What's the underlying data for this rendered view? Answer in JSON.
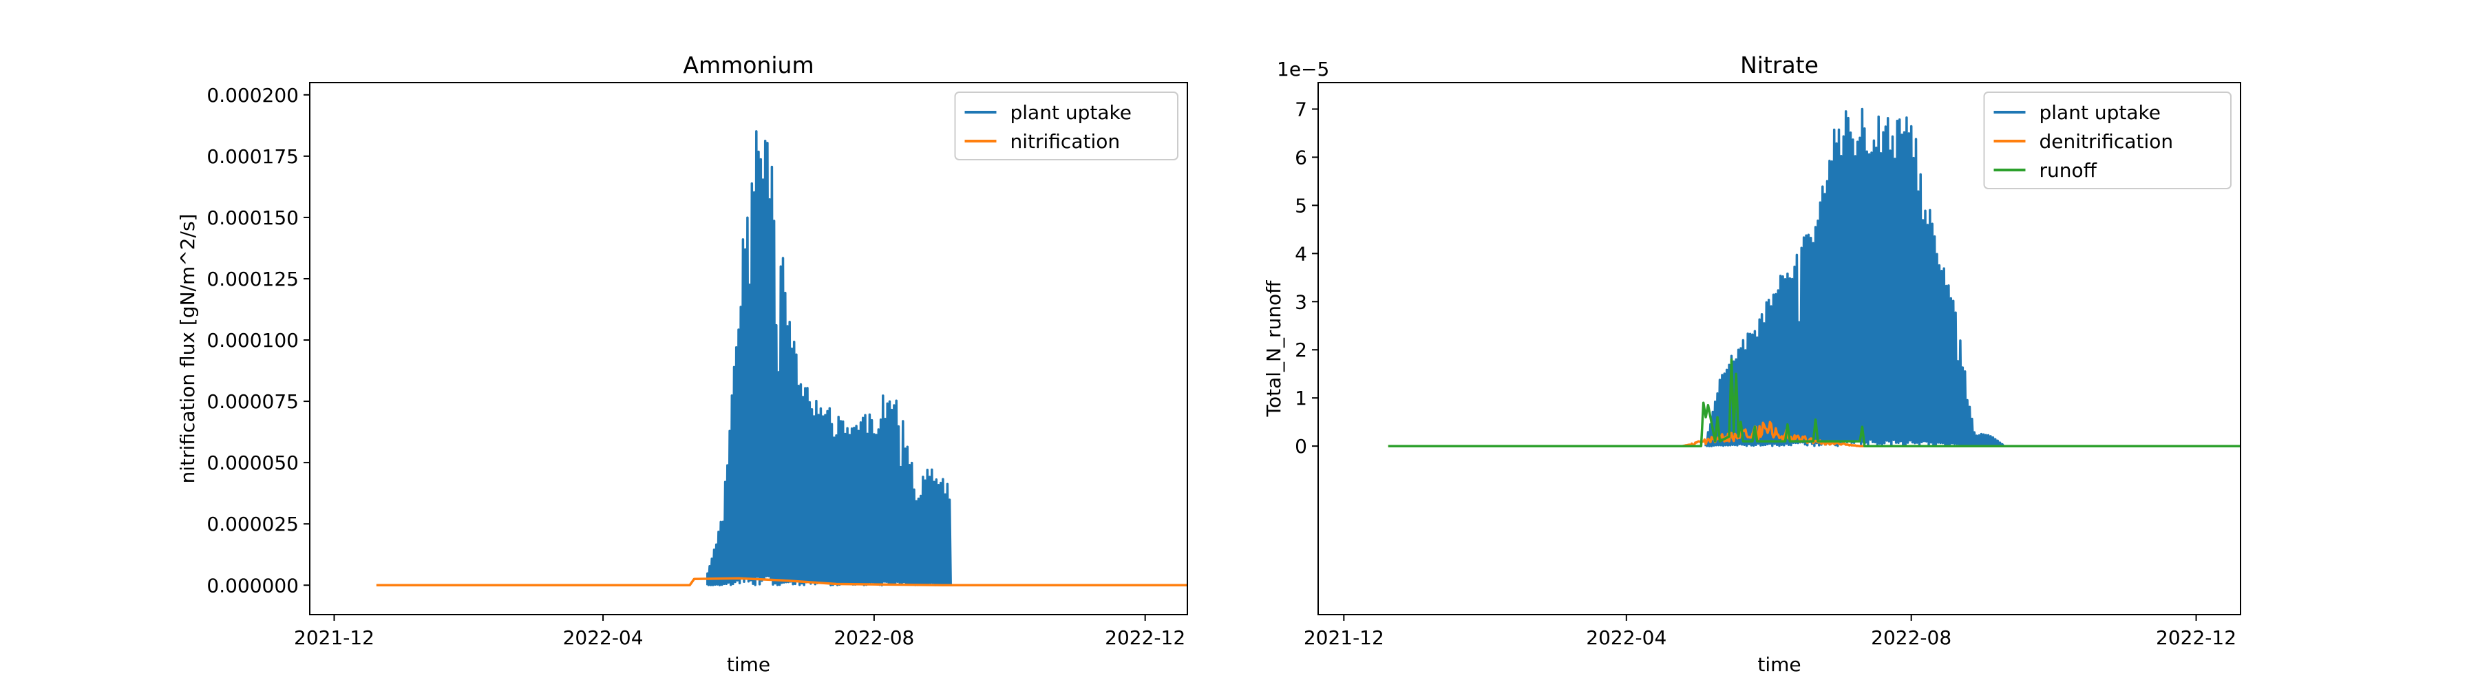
{
  "chart_data": [
    {
      "type": "line",
      "title": "Ammonium",
      "xlabel": "time",
      "ylabel": "nitrification flux [gN/m^2/s]",
      "xlim": [
        "2021-11-20",
        "2022-12-20"
      ],
      "ylim": [
        -1.2e-05,
        0.000205
      ],
      "xticks": [
        "2021-12",
        "2022-04",
        "2022-08",
        "2022-12"
      ],
      "xtick_dates": [
        "2021-12-01",
        "2022-04-01",
        "2022-08-01",
        "2022-12-01"
      ],
      "yticks": [
        "0.000000",
        "0.000025",
        "0.000050",
        "0.000075",
        "0.000100",
        "0.000125",
        "0.000150",
        "0.000175",
        "0.000200"
      ],
      "ytick_values": [
        0,
        2.5e-05,
        5e-05,
        7.5e-05,
        0.0001,
        0.000125,
        0.00015,
        0.000175,
        0.0002
      ],
      "offset_text": "",
      "grid": false,
      "legend_position": "upper right",
      "series": [
        {
          "name": "plant uptake",
          "color": "#1f77b4",
          "style": "oscillating",
          "x": [
            "2022-05-18",
            "2022-05-25",
            "2022-06-01",
            "2022-06-06",
            "2022-06-10",
            "2022-06-14",
            "2022-06-18",
            "2022-06-22",
            "2022-06-26",
            "2022-07-01",
            "2022-07-08",
            "2022-07-15",
            "2022-07-20",
            "2022-07-25",
            "2022-08-01",
            "2022-08-05",
            "2022-08-10",
            "2022-08-15",
            "2022-08-20",
            "2022-08-27",
            "2022-09-01",
            "2022-09-04",
            "2022-09-05"
          ],
          "y": [
            5e-06,
            3e-05,
            0.00012,
            0.00018,
            0.000195,
            0.00019,
            0.00016,
            0.000125,
            0.0001,
            8.5e-05,
            7.5e-05,
            7e-05,
            6.6e-05,
            7e-05,
            7e-05,
            7.8e-05,
            7.9e-05,
            6.5e-05,
            4e-05,
            5e-05,
            4.5e-05,
            4e-05,
            0.0
          ]
        },
        {
          "name": "nitrification",
          "color": "#ff7f0e",
          "style": "line",
          "x": [
            "2021-12-20",
            "2022-05-10",
            "2022-05-12",
            "2022-06-01",
            "2022-06-20",
            "2022-07-15",
            "2022-09-01",
            "2022-12-20"
          ],
          "y": [
            0,
            0,
            2.5e-06,
            2.8e-06,
            2e-06,
            5e-07,
            0,
            0
          ]
        }
      ]
    },
    {
      "type": "line",
      "title": "Nitrate",
      "xlabel": "time",
      "ylabel": "Total_N_runoff",
      "xlim": [
        "2021-11-20",
        "2022-12-20"
      ],
      "ylim": [
        -3.5e-05,
        7.55e-05
      ],
      "xticks": [
        "2021-12",
        "2022-04",
        "2022-08",
        "2022-12"
      ],
      "xtick_dates": [
        "2021-12-01",
        "2022-04-01",
        "2022-08-01",
        "2022-12-01"
      ],
      "yticks": [
        "0",
        "1",
        "2",
        "3",
        "4",
        "5",
        "6",
        "7"
      ],
      "ytick_values": [
        0,
        1e-05,
        2e-05,
        3e-05,
        4e-05,
        5e-05,
        6e-05,
        7e-05
      ],
      "offset_text": "1e−5",
      "grid": false,
      "legend_position": "upper right",
      "series": [
        {
          "name": "plant uptake",
          "color": "#1f77b4",
          "style": "oscillating",
          "x": [
            "2022-05-05",
            "2022-05-12",
            "2022-05-20",
            "2022-05-28",
            "2022-06-05",
            "2022-06-12",
            "2022-06-18",
            "2022-06-25",
            "2022-07-01",
            "2022-07-08",
            "2022-07-15",
            "2022-07-20",
            "2022-07-25",
            "2022-08-01",
            "2022-08-06",
            "2022-08-10",
            "2022-08-14",
            "2022-08-18",
            "2022-08-22",
            "2022-08-28",
            "2022-09-05",
            "2022-09-10"
          ],
          "y": [
            1e-06,
            1.6e-05,
            2.2e-05,
            2.7e-05,
            3.5e-05,
            4e-05,
            4.5e-05,
            5.8e-05,
            7e-05,
            7e-05,
            7.1e-05,
            7.1e-05,
            7e-05,
            7e-05,
            5.5e-05,
            5e-05,
            4e-05,
            3.5e-05,
            2.2e-05,
            3e-06,
            2e-06,
            0.0
          ]
        },
        {
          "name": "denitrification",
          "color": "#ff7f0e",
          "style": "noisy",
          "x": [
            "2021-12-20",
            "2022-04-25",
            "2022-05-05",
            "2022-05-15",
            "2022-05-25",
            "2022-06-01",
            "2022-06-10",
            "2022-06-20",
            "2022-07-01",
            "2022-07-10",
            "2022-12-20"
          ],
          "y": [
            0,
            0,
            1e-06,
            2e-06,
            3e-06,
            3.5e-06,
            2e-06,
            1e-06,
            5e-07,
            0,
            0
          ]
        },
        {
          "name": "runoff",
          "color": "#2ca02c",
          "style": "line",
          "x": [
            "2021-12-20",
            "2022-05-03",
            "2022-05-04",
            "2022-05-05",
            "2022-05-06",
            "2022-05-09",
            "2022-05-10",
            "2022-05-11",
            "2022-05-15",
            "2022-05-16",
            "2022-05-17",
            "2022-05-18",
            "2022-05-19",
            "2022-05-20",
            "2022-05-21",
            "2022-05-25",
            "2022-05-26",
            "2022-05-27",
            "2022-06-08",
            "2022-06-09",
            "2022-06-10",
            "2022-06-20",
            "2022-06-21",
            "2022-06-22",
            "2022-07-10",
            "2022-07-11",
            "2022-07-12",
            "2022-12-20"
          ],
          "y": [
            0,
            0,
            9e-06,
            6e-06,
            8.5e-06,
            1e-06,
            6e-06,
            1e-06,
            2e-06,
            1.8e-05,
            3e-06,
            1.5e-05,
            2e-06,
            5e-06,
            1e-06,
            1e-06,
            4e-06,
            1e-06,
            1e-06,
            4.5e-06,
            1e-06,
            1e-06,
            5.5e-06,
            1e-06,
            1e-06,
            4e-06,
            0.0,
            0.0
          ]
        }
      ]
    }
  ]
}
